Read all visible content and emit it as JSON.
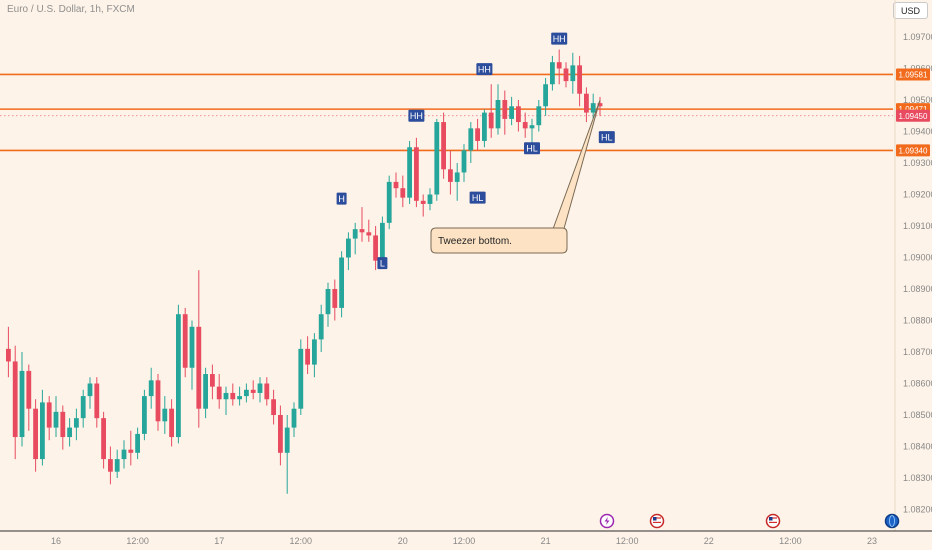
{
  "header": {
    "title": "Euro / U.S. Dollar, 1h, FXCM",
    "currency_button": "USD"
  },
  "colors": {
    "up": "#26a69a",
    "down": "#e84a5f",
    "level_line": "#f26b1d",
    "marker_bg": "#2c4d9b",
    "callout_bg": "#fde3c4",
    "callout_border": "#7a6a55"
  },
  "event_icons": [
    "lightning-icon",
    "us-flag-icon",
    "us-flag-icon",
    "globe-icon"
  ],
  "chart_data": {
    "type": "candlestick",
    "symbol": "EURUSD",
    "timeframe": "1h",
    "ylim": [
      1.0815,
      1.0975
    ],
    "y_ticks": [
      "1.09700",
      "1.09600",
      "1.09500",
      "1.09400",
      "1.09300",
      "1.09200",
      "1.09100",
      "1.09000",
      "1.08900",
      "1.08800",
      "1.08700",
      "1.08600",
      "1.08500",
      "1.08400",
      "1.08300",
      "1.08200"
    ],
    "x_labels": [
      {
        "label": "16",
        "bar": 7.5
      },
      {
        "label": "12:00",
        "bar": 19.5
      },
      {
        "label": "17",
        "bar": 31.5
      },
      {
        "label": "12:00",
        "bar": 43.5
      },
      {
        "label": "20",
        "bar": 58.5
      },
      {
        "label": "12:00",
        "bar": 67.5
      },
      {
        "label": "21",
        "bar": 79.5
      },
      {
        "label": "12:00",
        "bar": 91.5
      },
      {
        "label": "22",
        "bar": 103.5
      },
      {
        "label": "12:00",
        "bar": 115.5
      },
      {
        "label": "23",
        "bar": 127.5
      },
      {
        "label": "12:00",
        "bar": 139.5
      }
    ],
    "candles": [
      [
        1.0871,
        1.0878,
        1.0862,
        1.0867
      ],
      [
        1.0867,
        1.0872,
        1.0836,
        1.0843
      ],
      [
        1.0843,
        1.087,
        1.084,
        1.0864
      ],
      [
        1.0864,
        1.0866,
        1.0845,
        1.0852
      ],
      [
        1.0852,
        1.0855,
        1.0832,
        1.0836
      ],
      [
        1.0836,
        1.0858,
        1.0834,
        1.0854
      ],
      [
        1.0854,
        1.0856,
        1.0842,
        1.0846
      ],
      [
        1.0846,
        1.0856,
        1.0843,
        1.0851
      ],
      [
        1.0851,
        1.0853,
        1.0839,
        1.0843
      ],
      [
        1.0843,
        1.0849,
        1.084,
        1.0846
      ],
      [
        1.0846,
        1.0852,
        1.0842,
        1.0849
      ],
      [
        1.0849,
        1.0858,
        1.0846,
        1.0856
      ],
      [
        1.0856,
        1.0862,
        1.0852,
        1.086
      ],
      [
        1.086,
        1.0862,
        1.0846,
        1.0849
      ],
      [
        1.0849,
        1.0851,
        1.0833,
        1.0836
      ],
      [
        1.0836,
        1.084,
        1.0828,
        1.0832
      ],
      [
        1.0832,
        1.0839,
        1.083,
        1.0836
      ],
      [
        1.0836,
        1.0842,
        1.0833,
        1.0839
      ],
      [
        1.0839,
        1.0845,
        1.0834,
        1.0838
      ],
      [
        1.0838,
        1.0846,
        1.0836,
        1.0844
      ],
      [
        1.0844,
        1.0858,
        1.0842,
        1.0856
      ],
      [
        1.0856,
        1.0865,
        1.0852,
        1.0861
      ],
      [
        1.0861,
        1.0863,
        1.0845,
        1.0848
      ],
      [
        1.0848,
        1.0856,
        1.0844,
        1.0852
      ],
      [
        1.0852,
        1.0855,
        1.084,
        1.0843
      ],
      [
        1.0843,
        1.0885,
        1.0841,
        1.0882
      ],
      [
        1.0882,
        1.0884,
        1.0862,
        1.0865
      ],
      [
        1.0865,
        1.088,
        1.0858,
        1.0878
      ],
      [
        1.0878,
        1.0896,
        1.0846,
        1.0852
      ],
      [
        1.0852,
        1.0865,
        1.0849,
        1.0863
      ],
      [
        1.0863,
        1.0866,
        1.0855,
        1.0859
      ],
      [
        1.0859,
        1.0863,
        1.0852,
        1.0855
      ],
      [
        1.0855,
        1.0859,
        1.085,
        1.0857
      ],
      [
        1.0857,
        1.086,
        1.0853,
        1.0855
      ],
      [
        1.0855,
        1.0859,
        1.0853,
        1.0856
      ],
      [
        1.0856,
        1.086,
        1.0854,
        1.0858
      ],
      [
        1.0858,
        1.0861,
        1.0855,
        1.0857
      ],
      [
        1.0857,
        1.0862,
        1.0854,
        1.086
      ],
      [
        1.086,
        1.0862,
        1.0853,
        1.0855
      ],
      [
        1.0855,
        1.0858,
        1.0847,
        1.085
      ],
      [
        1.085,
        1.0853,
        1.0834,
        1.0838
      ],
      [
        1.0838,
        1.085,
        1.0825,
        1.0846
      ],
      [
        1.0846,
        1.0854,
        1.0843,
        1.0852
      ],
      [
        1.0852,
        1.0874,
        1.085,
        1.0871
      ],
      [
        1.0871,
        1.0875,
        1.0863,
        1.0866
      ],
      [
        1.0866,
        1.0876,
        1.0862,
        1.0874
      ],
      [
        1.0874,
        1.0885,
        1.087,
        1.0882
      ],
      [
        1.0882,
        1.0892,
        1.0878,
        1.089
      ],
      [
        1.089,
        1.0893,
        1.088,
        1.0884
      ],
      [
        1.0884,
        1.0902,
        1.0881,
        1.09
      ],
      [
        1.09,
        1.0908,
        1.0896,
        1.0906
      ],
      [
        1.0906,
        1.0911,
        1.0901,
        1.0909
      ],
      [
        1.0909,
        1.0916,
        1.0905,
        1.0908
      ],
      [
        1.0908,
        1.0912,
        1.0905,
        1.0907
      ],
      [
        1.0907,
        1.091,
        1.0896,
        1.0899
      ],
      [
        1.0899,
        1.0913,
        1.0897,
        1.0911
      ],
      [
        1.0911,
        1.0926,
        1.0909,
        1.0924
      ],
      [
        1.0924,
        1.0927,
        1.0919,
        1.0922
      ],
      [
        1.0922,
        1.0926,
        1.0916,
        1.0919
      ],
      [
        1.0919,
        1.0937,
        1.0917,
        1.0935
      ],
      [
        1.0935,
        1.0938,
        1.0916,
        1.0918
      ],
      [
        1.0918,
        1.092,
        1.0913,
        1.0917
      ],
      [
        1.0917,
        1.0922,
        1.0915,
        1.092
      ],
      [
        1.092,
        1.0944,
        1.0918,
        1.0943
      ],
      [
        1.0943,
        1.0946,
        1.0925,
        1.0928
      ],
      [
        1.0928,
        1.0934,
        1.092,
        1.0924
      ],
      [
        1.0924,
        1.093,
        1.0918,
        1.0927
      ],
      [
        1.0927,
        1.0936,
        1.0924,
        1.0934
      ],
      [
        1.0934,
        1.0943,
        1.093,
        1.0941
      ],
      [
        1.0941,
        1.0944,
        1.0934,
        1.0937
      ],
      [
        1.0937,
        1.0947,
        1.0935,
        1.0946
      ],
      [
        1.0946,
        1.0955,
        1.0938,
        1.0941
      ],
      [
        1.0941,
        1.0955,
        1.0939,
        1.095
      ],
      [
        1.095,
        1.0953,
        1.0939,
        1.0944
      ],
      [
        1.0944,
        1.0951,
        1.0942,
        1.0948
      ],
      [
        1.0948,
        1.095,
        1.094,
        1.0943
      ],
      [
        1.0943,
        1.0946,
        1.0938,
        1.0941
      ],
      [
        1.0941,
        1.0944,
        1.0936,
        1.0942
      ],
      [
        1.0942,
        1.095,
        1.094,
        1.0948
      ],
      [
        1.0948,
        1.0957,
        1.0945,
        1.0955
      ],
      [
        1.0955,
        1.0964,
        1.0953,
        1.0962
      ],
      [
        1.0962,
        1.0966,
        1.0955,
        1.096
      ],
      [
        1.096,
        1.0962,
        1.0954,
        1.0956
      ],
      [
        1.0956,
        1.0965,
        1.0952,
        1.0961
      ],
      [
        1.0961,
        1.0964,
        1.0948,
        1.0952
      ],
      [
        1.0952,
        1.0954,
        1.0943,
        1.0946
      ],
      [
        1.0946,
        1.0952,
        1.0944,
        1.0949
      ],
      [
        1.0949,
        1.0951,
        1.0945,
        1.0948
      ]
    ],
    "levels": [
      {
        "price": 1.09581,
        "label": "1.09581"
      },
      {
        "price": 1.09471,
        "label": "1.09471"
      },
      {
        "price": 1.0934,
        "label": "1.09340"
      }
    ],
    "current_price": {
      "price": 1.0945,
      "label": "1.09450"
    },
    "markers": [
      {
        "text": "HH",
        "bar": 81.5,
        "price": 1.09695
      },
      {
        "text": "HH",
        "bar": 70.5,
        "price": 1.09598
      },
      {
        "text": "HH",
        "bar": 60.5,
        "price": 1.0945
      },
      {
        "text": "H",
        "bar": 49.5,
        "price": 1.09187
      },
      {
        "text": "L",
        "bar": 55.5,
        "price": 1.08982
      },
      {
        "text": "HL",
        "bar": 69.5,
        "price": 1.0919
      },
      {
        "text": "HL",
        "bar": 77.5,
        "price": 1.09347
      },
      {
        "text": "HL",
        "bar": 88.5,
        "price": 1.09382
      }
    ],
    "annotation": {
      "text": "Tweezer bottom.",
      "target_bar": 87,
      "target_price": 1.095
    }
  }
}
